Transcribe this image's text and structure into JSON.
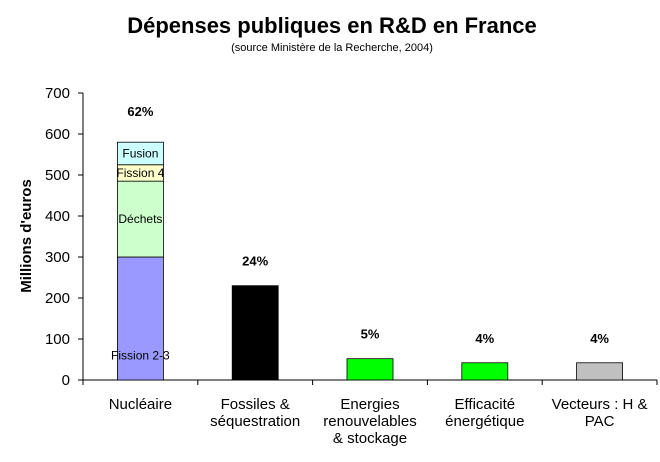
{
  "chart_data": {
    "type": "bar",
    "title": "Dépenses publiques en R&D en France",
    "subtitle": "(source Ministère de la Recherche, 2004)",
    "ylabel": "Millions d'euros",
    "xlabel": "",
    "ylim": [
      0,
      700
    ],
    "yticks": [
      0,
      100,
      200,
      300,
      400,
      500,
      600,
      700
    ],
    "grid": false,
    "categories": [
      [
        "Nucléaire"
      ],
      [
        "Fossiles &",
        "séquestration"
      ],
      [
        "Energies",
        "renouvelables",
        "& stockage"
      ],
      [
        "Efficacité",
        "énergétique"
      ],
      [
        "Vecteurs : H &",
        "PAC"
      ]
    ],
    "bars": [
      {
        "category_index": 0,
        "percent_label": "62%",
        "segments": [
          {
            "name": "Fission 2-3",
            "value": 300,
            "color": "#9999ff"
          },
          {
            "name": "Déchets",
            "value": 185,
            "color": "#ccffcc"
          },
          {
            "name": "Fission 4",
            "value": 40,
            "color": "#ffffcc"
          },
          {
            "name": "Fusion",
            "value": 55,
            "color": "#ccffff"
          }
        ]
      },
      {
        "category_index": 1,
        "percent_label": "24%",
        "segments": [
          {
            "name": "",
            "value": 230,
            "color": "#000000"
          }
        ]
      },
      {
        "category_index": 2,
        "percent_label": "5%",
        "segments": [
          {
            "name": "",
            "value": 52,
            "color": "#00ff00"
          }
        ]
      },
      {
        "category_index": 3,
        "percent_label": "4%",
        "segments": [
          {
            "name": "",
            "value": 42,
            "color": "#00ff00"
          }
        ]
      },
      {
        "category_index": 4,
        "percent_label": "4%",
        "segments": [
          {
            "name": "",
            "value": 42,
            "color": "#c0c0c0"
          }
        ]
      }
    ]
  }
}
